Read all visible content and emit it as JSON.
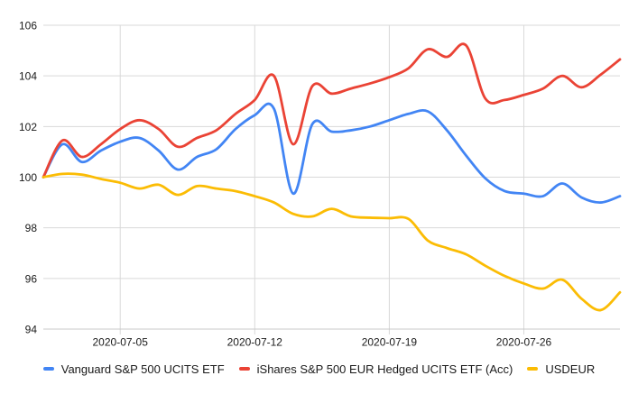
{
  "chart_data": {
    "type": "line",
    "title": "",
    "xlabel": "",
    "ylabel": "",
    "ylim": [
      94,
      106
    ],
    "grid": true,
    "smooth_lines": true,
    "legend_position": "bottom",
    "background_color": "#ffffff",
    "y_ticks": [
      94,
      96,
      98,
      100,
      102,
      104,
      106
    ],
    "x_tick_labels": [
      "2020-07-05",
      "2020-07-12",
      "2020-07-19",
      "2020-07-26"
    ],
    "x": [
      "2020-07-01",
      "2020-07-02",
      "2020-07-03",
      "2020-07-04",
      "2020-07-05",
      "2020-07-06",
      "2020-07-07",
      "2020-07-08",
      "2020-07-09",
      "2020-07-10",
      "2020-07-11",
      "2020-07-12",
      "2020-07-13",
      "2020-07-14",
      "2020-07-15",
      "2020-07-16",
      "2020-07-17",
      "2020-07-18",
      "2020-07-19",
      "2020-07-20",
      "2020-07-21",
      "2020-07-22",
      "2020-07-23",
      "2020-07-24",
      "2020-07-25",
      "2020-07-26",
      "2020-07-27",
      "2020-07-28",
      "2020-07-29",
      "2020-07-30",
      "2020-07-31"
    ],
    "series": [
      {
        "name": "Vanguard S&P 500 UCITS ETF",
        "color": "#4285F4",
        "values": [
          100,
          101.3,
          100.6,
          101.05,
          101.4,
          101.55,
          101.05,
          100.3,
          100.8,
          101.1,
          101.9,
          102.45,
          102.7,
          99.35,
          102.1,
          101.8,
          101.85,
          102.0,
          102.25,
          102.5,
          102.6,
          101.85,
          100.85,
          99.95,
          99.45,
          99.35,
          99.25,
          99.75,
          99.2,
          99.0,
          99.25
        ]
      },
      {
        "name": "iShares S&P 500 EUR Hedged UCITS ETF (Acc)",
        "color": "#EA4335",
        "values": [
          100,
          101.45,
          100.8,
          101.3,
          101.9,
          102.25,
          101.9,
          101.2,
          101.55,
          101.85,
          102.5,
          103.05,
          104.0,
          101.3,
          103.6,
          103.3,
          103.5,
          103.7,
          103.95,
          104.3,
          105.05,
          104.75,
          105.2,
          103.1,
          103.05,
          103.25,
          103.5,
          104.0,
          103.55,
          104.05,
          104.65
        ]
      },
      {
        "name": "USDEUR",
        "color": "#FBBC04",
        "values": [
          100,
          100.13,
          100.1,
          99.93,
          99.78,
          99.55,
          99.7,
          99.3,
          99.65,
          99.55,
          99.45,
          99.25,
          99.0,
          98.55,
          98.45,
          98.75,
          98.45,
          98.4,
          98.38,
          98.35,
          97.5,
          97.2,
          96.95,
          96.5,
          96.1,
          95.8,
          95.6,
          95.95,
          95.2,
          94.75,
          95.45
        ]
      }
    ],
    "gridline_color": "#d9d9d9",
    "axis_line_color": "#c8c8c8"
  }
}
